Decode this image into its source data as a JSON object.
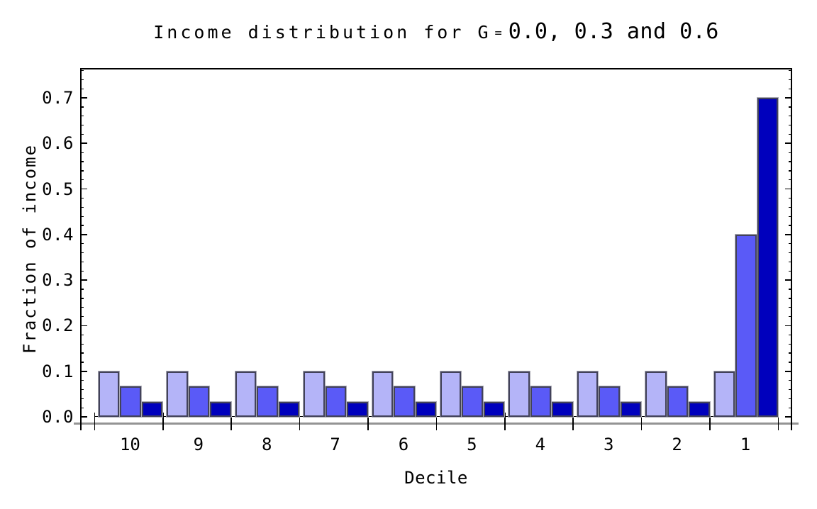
{
  "title": {
    "part1": "Income distribution for G",
    "equals": "=",
    "part2": "0.0, 0.3 and 0.6"
  },
  "chart_data": {
    "type": "bar",
    "title": "Income distribution for G = 0.0, 0.3 and 0.6",
    "xlabel": "Decile",
    "ylabel": "Fraction of income",
    "categories": [
      "10",
      "9",
      "8",
      "7",
      "6",
      "5",
      "4",
      "3",
      "2",
      "1"
    ],
    "series": [
      {
        "name": "G = 0.0",
        "color": "#b4b4f8",
        "values": [
          0.1,
          0.1,
          0.1,
          0.1,
          0.1,
          0.1,
          0.1,
          0.1,
          0.1,
          0.1
        ]
      },
      {
        "name": "G = 0.3",
        "color": "#5a5af7",
        "values": [
          0.0667,
          0.0667,
          0.0667,
          0.0667,
          0.0667,
          0.0667,
          0.0667,
          0.0667,
          0.0667,
          0.4
        ]
      },
      {
        "name": "G = 0.6",
        "color": "#0000bd",
        "values": [
          0.0333,
          0.0333,
          0.0333,
          0.0333,
          0.0333,
          0.0333,
          0.0333,
          0.0333,
          0.0333,
          0.7
        ]
      }
    ],
    "ylim": [
      0,
      0.765
    ],
    "yticks": [
      0.0,
      0.1,
      0.2,
      0.3,
      0.4,
      0.5,
      0.6,
      0.7
    ],
    "ytick_labels": [
      "0.0",
      "0.1",
      "0.2",
      "0.3",
      "0.4",
      "0.5",
      "0.6",
      "0.7"
    ],
    "minor_ytick_step": 0.02,
    "grid": false,
    "legend_position": "none",
    "frame": true
  },
  "colors": {
    "frame": "#000000",
    "frame_bottom": "#949494",
    "bar_edge": "#42425a",
    "background": "#ffffff",
    "text": "#000000"
  }
}
